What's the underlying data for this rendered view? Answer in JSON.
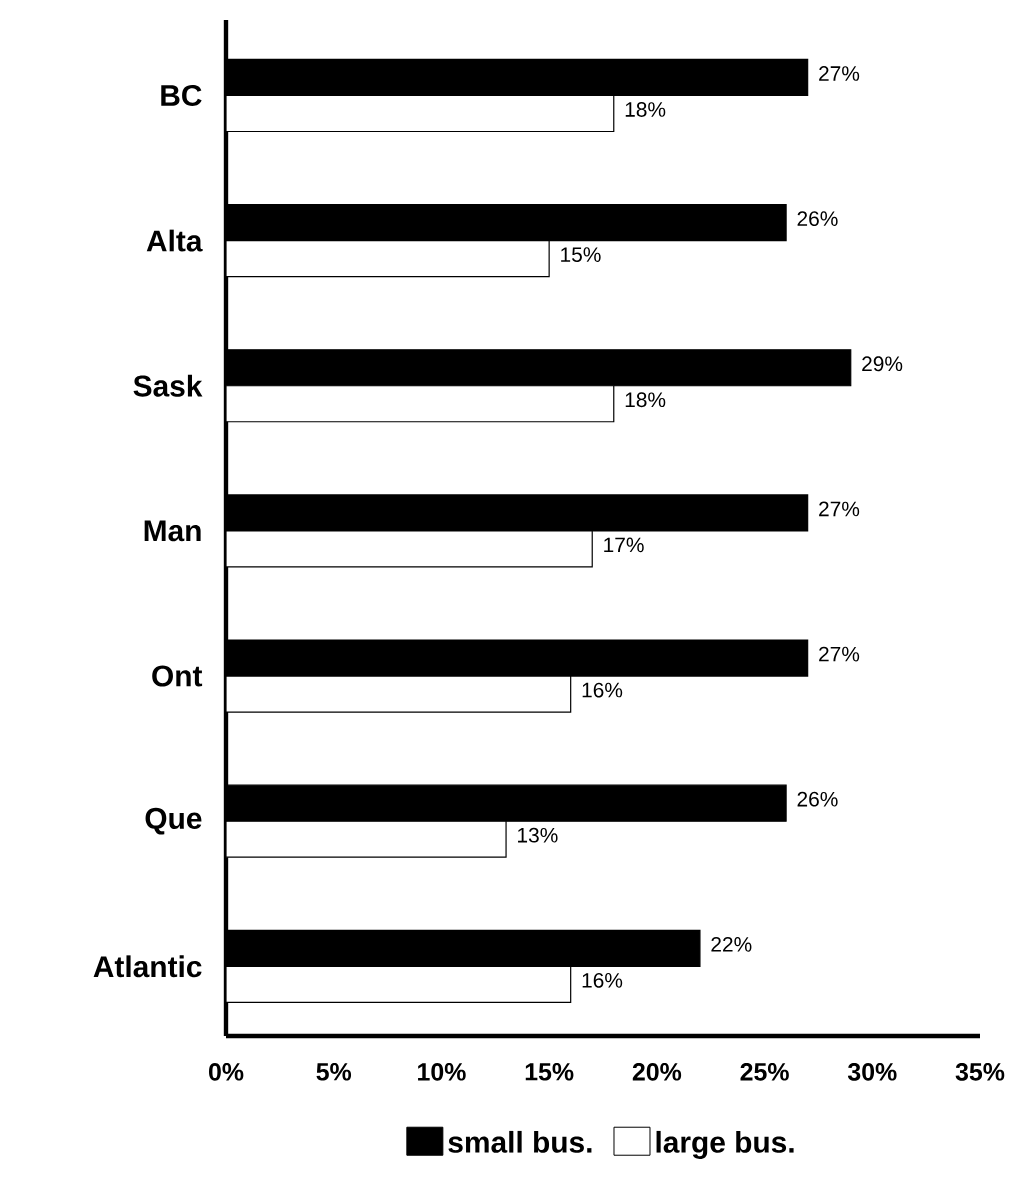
{
  "chart_data": {
    "type": "bar",
    "orientation": "horizontal",
    "categories": [
      "BC",
      "Alta",
      "Sask",
      "Man",
      "Ont",
      "Que",
      "Atlantic"
    ],
    "series": [
      {
        "name": "small bus.",
        "color": "#000000",
        "values": [
          27,
          26,
          29,
          27,
          27,
          26,
          22
        ],
        "value_labels": [
          "27%",
          "26%",
          "29%",
          "27%",
          "27%",
          "26%",
          "22%"
        ]
      },
      {
        "name": "large bus.",
        "color": "#ffffff",
        "values": [
          18,
          15,
          18,
          17,
          16,
          13,
          16
        ],
        "value_labels": [
          "18%",
          "15%",
          "18%",
          "17%",
          "16%",
          "13%",
          "16%"
        ]
      }
    ],
    "xlim": [
      0,
      35
    ],
    "xticks": [
      {
        "value": 0,
        "label": "0%"
      },
      {
        "value": 5,
        "label": "5%"
      },
      {
        "value": 10,
        "label": "10%"
      },
      {
        "value": 15,
        "label": "15%"
      },
      {
        "value": 20,
        "label": "20%"
      },
      {
        "value": 25,
        "label": "25%"
      },
      {
        "value": 30,
        "label": "30%"
      },
      {
        "value": 35,
        "label": "35%"
      }
    ],
    "legend": "bottom"
  }
}
